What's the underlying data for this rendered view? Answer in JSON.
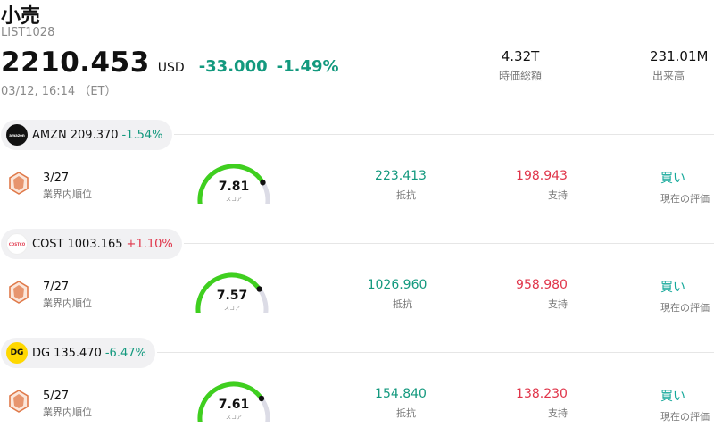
{
  "header": {
    "title": "小売",
    "code": "LIST1028",
    "price": "2210.453",
    "currency": "USD",
    "change": "-33.000",
    "change_pct": "-1.49%",
    "timestamp": "03/12, 16:14 （ET）"
  },
  "stats": {
    "market_cap_value": "4.32T",
    "market_cap_label": "時価総額",
    "volume_value": "231.01M",
    "volume_label": "出来高"
  },
  "labels": {
    "rank": "業界内順位",
    "score": "スコア",
    "resistance": "抵抗",
    "support": "支持",
    "rating": "現在の評価"
  },
  "colors": {
    "up": "#e0354a",
    "down": "#13997e",
    "gauge_fill": "#3fcf1f",
    "gauge_track": "#dcdce6",
    "rating": "#14a89a",
    "rank_icon": "#e07a4a"
  },
  "stocks": [
    {
      "ticker": "AMZN",
      "price": "209.370",
      "change": "-1.54%",
      "direction": "down",
      "logo_icon": "amazon-logo-icon",
      "logo_text": "amazon",
      "rank": "3/27",
      "score": "7.81",
      "score_fraction": 0.781,
      "resistance": "223.413",
      "support": "198.943",
      "rating": "買い"
    },
    {
      "ticker": "COST",
      "price": "1003.165",
      "change": "+1.10%",
      "direction": "up",
      "logo_icon": "costco-logo-icon",
      "logo_text": "COSTCO",
      "rank": "7/27",
      "score": "7.57",
      "score_fraction": 0.757,
      "resistance": "1026.960",
      "support": "958.980",
      "rating": "買い"
    },
    {
      "ticker": "DG",
      "price": "135.470",
      "change": "-6.47%",
      "direction": "down",
      "logo_icon": "dollar-general-logo-icon",
      "logo_text": "DG",
      "rank": "5/27",
      "score": "7.61",
      "score_fraction": 0.761,
      "resistance": "154.840",
      "support": "138.230",
      "rating": "買い"
    }
  ]
}
